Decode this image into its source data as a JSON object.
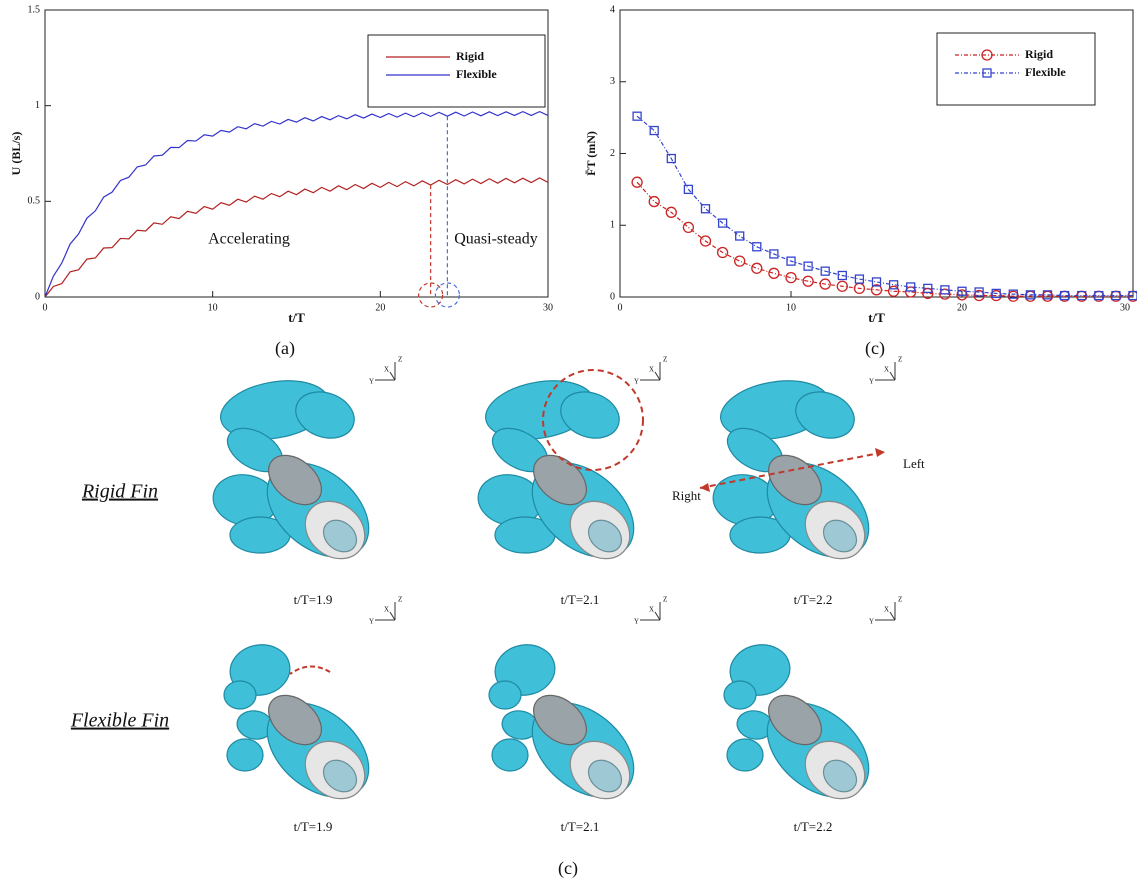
{
  "chart_data": [
    {
      "type": "line",
      "x_label": "t/T",
      "y_label": "U (BL/s)",
      "x": [
        0,
        0.5,
        1,
        1.5,
        2,
        2.5,
        3,
        3.5,
        4,
        4.5,
        5,
        5.5,
        6,
        6.5,
        7,
        7.5,
        8,
        8.5,
        9,
        9.5,
        10,
        10.5,
        11,
        11.5,
        12,
        12.5,
        13,
        13.5,
        14,
        14.5,
        15,
        15.5,
        16,
        16.5,
        17,
        17.5,
        18,
        18.5,
        19,
        19.5,
        20,
        20.5,
        21,
        21.5,
        22,
        22.5,
        23,
        23.5,
        24,
        24.5,
        25,
        25.5,
        26,
        26.5,
        27,
        27.5,
        28,
        28.5,
        29,
        29.5,
        30
      ],
      "series": [
        {
          "name": "Rigid",
          "color": "#b22222",
          "values": [
            0,
            0.055,
            0.07,
            0.132,
            0.142,
            0.198,
            0.204,
            0.256,
            0.258,
            0.306,
            0.304,
            0.349,
            0.345,
            0.387,
            0.38,
            0.419,
            0.41,
            0.448,
            0.437,
            0.473,
            0.459,
            0.493,
            0.479,
            0.511,
            0.496,
            0.527,
            0.511,
            0.541,
            0.524,
            0.553,
            0.535,
            0.564,
            0.545,
            0.573,
            0.553,
            0.581,
            0.561,
            0.588,
            0.567,
            0.594,
            0.573,
            0.599,
            0.577,
            0.603,
            0.581,
            0.607,
            0.585,
            0.61,
            0.588,
            0.613,
            0.591,
            0.616,
            0.593,
            0.618,
            0.595,
            0.62,
            0.597,
            0.621,
            0.598,
            0.622,
            0.599
          ]
        },
        {
          "name": "Flexible",
          "color": "#3333cc",
          "values": [
            0,
            0.109,
            0.177,
            0.277,
            0.329,
            0.412,
            0.45,
            0.522,
            0.548,
            0.609,
            0.626,
            0.68,
            0.69,
            0.737,
            0.741,
            0.782,
            0.781,
            0.818,
            0.815,
            0.848,
            0.841,
            0.871,
            0.862,
            0.89,
            0.879,
            0.906,
            0.893,
            0.918,
            0.904,
            0.928,
            0.914,
            0.937,
            0.92,
            0.943,
            0.926,
            0.948,
            0.931,
            0.953,
            0.935,
            0.956,
            0.938,
            0.959,
            0.94,
            0.961,
            0.942,
            0.963,
            0.944,
            0.965,
            0.945,
            0.966,
            0.946,
            0.967,
            0.947,
            0.968,
            0.948,
            0.968,
            0.949,
            0.969,
            0.949,
            0.969,
            0.949
          ]
        }
      ],
      "xlim": [
        0,
        30
      ],
      "ylim": [
        0,
        1.5
      ],
      "xticks": [
        0,
        10,
        20,
        30
      ],
      "yticks": [
        0,
        0.5,
        1,
        1.5
      ],
      "legend": "upper right",
      "annotations": [
        "Accelerating",
        "Quasi-steady"
      ],
      "reference_lines": [
        {
          "x": 23,
          "color": "#c0392b"
        },
        {
          "x": 24,
          "color": "#4a6fd8"
        }
      ]
    },
    {
      "type": "line",
      "x_label": "t/T",
      "y_label": "F̄T (mN)",
      "line_style": "dashdot",
      "x": [
        1,
        2,
        3,
        4,
        5,
        6,
        7,
        8,
        9,
        10,
        11,
        12,
        13,
        14,
        15,
        16,
        17,
        18,
        19,
        20,
        21,
        22,
        23,
        24,
        25,
        26,
        27,
        28,
        29,
        30
      ],
      "series": [
        {
          "name": "Rigid",
          "color": "#cc2222",
          "marker": "circle",
          "values": [
            1.6,
            1.33,
            1.18,
            0.97,
            0.78,
            0.62,
            0.5,
            0.4,
            0.33,
            0.27,
            0.22,
            0.18,
            0.15,
            0.12,
            0.1,
            0.08,
            0.07,
            0.05,
            0.04,
            0.03,
            0.02,
            0.02,
            0.01,
            0.01,
            0.01,
            0.01,
            0.01,
            0.01,
            0.01,
            0.01
          ]
        },
        {
          "name": "Flexible",
          "color": "#3344cc",
          "marker": "square",
          "values": [
            2.52,
            2.32,
            1.93,
            1.5,
            1.23,
            1.03,
            0.85,
            0.7,
            0.6,
            0.5,
            0.43,
            0.36,
            0.3,
            0.25,
            0.21,
            0.17,
            0.14,
            0.12,
            0.1,
            0.08,
            0.07,
            0.05,
            0.04,
            0.03,
            0.03,
            0.02,
            0.02,
            0.02,
            0.02,
            0.02
          ]
        }
      ],
      "xlim": [
        0,
        30
      ],
      "ylim": [
        0,
        4
      ],
      "xticks": [
        0,
        10,
        20,
        30
      ],
      "yticks": [
        0,
        1,
        2,
        3,
        4
      ],
      "legend": "upper right"
    }
  ],
  "figure": {
    "panel_labels": [
      "(a)",
      "(c)",
      "(c)"
    ],
    "row_labels": [
      "Rigid Fin",
      "Flexible Fin"
    ],
    "captions": [
      "t/T=1.9",
      "t/T=2.1",
      "t/T=2.2"
    ],
    "direction_labels": [
      "Left",
      "Right"
    ],
    "triad_labels": [
      "Z",
      "X",
      "Y"
    ]
  }
}
